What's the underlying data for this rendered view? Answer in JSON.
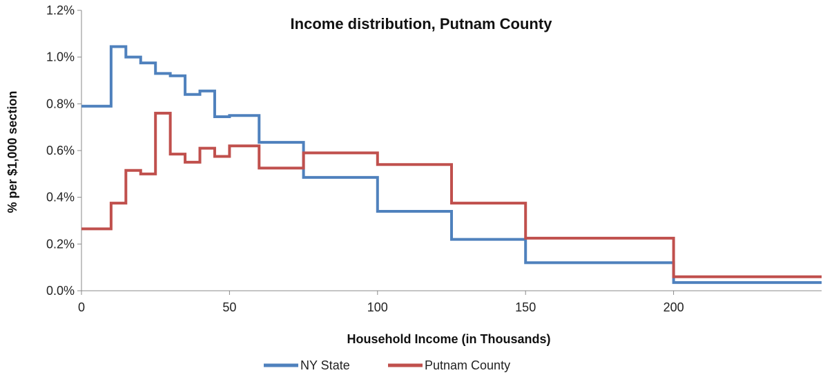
{
  "chart_data": {
    "type": "line",
    "step": true,
    "title": "Income distribution, Putnam County",
    "xlabel": "Household Income (in Thousands)",
    "ylabel": "% per $1,000 section",
    "xlim": [
      0,
      250
    ],
    "ylim": [
      0,
      0.012
    ],
    "x_ticks": [
      0,
      50,
      100,
      150,
      200
    ],
    "y_ticks": [
      0,
      0.002,
      0.004,
      0.006,
      0.008,
      0.01,
      0.012
    ],
    "y_tick_labels": [
      "0.0%",
      "0.2%",
      "0.4%",
      "0.6%",
      "0.8%",
      "1.0%",
      "1.2%"
    ],
    "grid": false,
    "legend_position": "bottom",
    "bin_edges": [
      0,
      10,
      15,
      20,
      25,
      30,
      35,
      40,
      45,
      50,
      60,
      75,
      100,
      125,
      150,
      200,
      250
    ],
    "series": [
      {
        "name": "NY State",
        "color": "#4f81bd",
        "values": [
          0.0079,
          0.01045,
          0.01,
          0.00975,
          0.0093,
          0.0092,
          0.0084,
          0.00855,
          0.00745,
          0.0075,
          0.00635,
          0.00485,
          0.0034,
          0.0022,
          0.0012,
          0.00035
        ]
      },
      {
        "name": "Putnam County",
        "color": "#c0504d",
        "values": [
          0.00265,
          0.00375,
          0.00515,
          0.005,
          0.0076,
          0.00585,
          0.0055,
          0.0061,
          0.00575,
          0.0062,
          0.00525,
          0.0059,
          0.0054,
          0.00375,
          0.00225,
          0.0006
        ]
      }
    ]
  }
}
